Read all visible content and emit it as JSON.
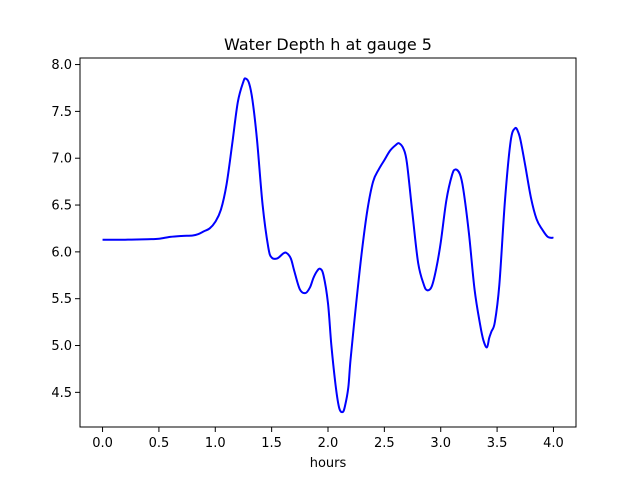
{
  "chart_data": {
    "type": "line",
    "title": "Water Depth h at gauge 5",
    "xlabel": "hours",
    "ylabel": "",
    "xlim": [
      -0.2,
      4.2
    ],
    "ylim": [
      4.13,
      8.07
    ],
    "xticks": [
      0.0,
      0.5,
      1.0,
      1.5,
      2.0,
      2.5,
      3.0,
      3.5,
      4.0
    ],
    "xtick_labels": [
      "0.0",
      "0.5",
      "1.0",
      "1.5",
      "2.0",
      "2.5",
      "3.0",
      "3.5",
      "4.0"
    ],
    "yticks": [
      4.5,
      5.0,
      5.5,
      6.0,
      6.5,
      7.0,
      7.5,
      8.0
    ],
    "ytick_labels": [
      "4.5",
      "5.0",
      "5.5",
      "6.0",
      "6.5",
      "7.0",
      "7.5",
      "8.0"
    ],
    "grid": false,
    "series": [
      {
        "color": "#0000ff",
        "x": [
          0.0,
          0.2,
          0.4,
          0.5,
          0.6,
          0.7,
          0.8,
          0.85,
          0.9,
          0.95,
          1.0,
          1.05,
          1.1,
          1.15,
          1.2,
          1.25,
          1.27,
          1.3,
          1.33,
          1.37,
          1.42,
          1.47,
          1.5,
          1.55,
          1.6,
          1.63,
          1.67,
          1.7,
          1.75,
          1.8,
          1.84,
          1.87,
          1.9,
          1.93,
          1.96,
          2.0,
          2.03,
          2.07,
          2.1,
          2.13,
          2.15,
          2.18,
          2.2,
          2.25,
          2.3,
          2.35,
          2.4,
          2.45,
          2.5,
          2.55,
          2.6,
          2.63,
          2.67,
          2.7,
          2.75,
          2.8,
          2.85,
          2.88,
          2.92,
          2.96,
          3.0,
          3.05,
          3.1,
          3.13,
          3.17,
          3.2,
          3.25,
          3.3,
          3.35,
          3.38,
          3.41,
          3.43,
          3.45,
          3.48,
          3.52,
          3.57,
          3.62,
          3.66,
          3.69,
          3.71,
          3.75,
          3.8,
          3.85,
          3.9,
          3.95,
          4.0
        ],
        "y": [
          6.13,
          6.13,
          6.135,
          6.14,
          6.16,
          6.17,
          6.175,
          6.19,
          6.22,
          6.25,
          6.32,
          6.45,
          6.72,
          7.15,
          7.6,
          7.82,
          7.85,
          7.8,
          7.62,
          7.2,
          6.5,
          6.05,
          5.94,
          5.93,
          5.98,
          5.99,
          5.93,
          5.8,
          5.6,
          5.56,
          5.62,
          5.72,
          5.79,
          5.82,
          5.75,
          5.45,
          5.0,
          4.55,
          4.33,
          4.29,
          4.35,
          4.55,
          4.85,
          5.45,
          6.0,
          6.45,
          6.75,
          6.88,
          6.98,
          7.08,
          7.14,
          7.16,
          7.1,
          6.95,
          6.4,
          5.88,
          5.65,
          5.59,
          5.63,
          5.82,
          6.1,
          6.55,
          6.82,
          6.88,
          6.83,
          6.67,
          6.2,
          5.6,
          5.22,
          5.05,
          4.98,
          5.08,
          5.15,
          5.25,
          5.65,
          6.55,
          7.18,
          7.32,
          7.27,
          7.18,
          6.92,
          6.58,
          6.35,
          6.24,
          6.16,
          6.15
        ]
      }
    ]
  }
}
